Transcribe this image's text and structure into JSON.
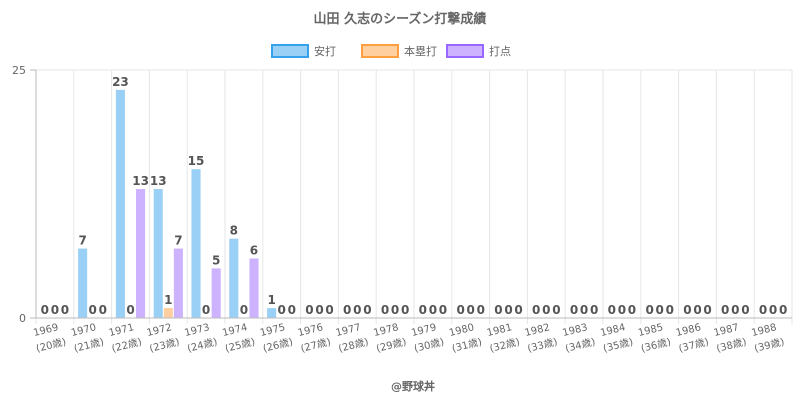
{
  "chart_data": {
    "type": "bar",
    "title": "山田 久志のシーズン打撃成績",
    "categories": [
      "1969",
      "1970",
      "1971",
      "1972",
      "1973",
      "1974",
      "1975",
      "1976",
      "1977",
      "1978",
      "1979",
      "1980",
      "1981",
      "1982",
      "1983",
      "1984",
      "1985",
      "1986",
      "1987",
      "1988"
    ],
    "category_sublabels": [
      "(20歳)",
      "(21歳)",
      "(22歳)",
      "(23歳)",
      "(24歳)",
      "(25歳)",
      "(26歳)",
      "(27歳)",
      "(28歳)",
      "(29歳)",
      "(30歳)",
      "(31歳)",
      "(32歳)",
      "(33歳)",
      "(34歳)",
      "(35歳)",
      "(36歳)",
      "(37歳)",
      "(38歳)",
      "(39歳)"
    ],
    "series": [
      {
        "name": "安打",
        "color": "#9ad0f5",
        "border": "#36a2eb",
        "values": [
          0,
          7,
          23,
          13,
          15,
          8,
          1,
          0,
          0,
          0,
          0,
          0,
          0,
          0,
          0,
          0,
          0,
          0,
          0,
          0
        ]
      },
      {
        "name": "本塁打",
        "color": "#ffcf9f",
        "border": "#ff9f40",
        "values": [
          0,
          0,
          0,
          1,
          0,
          0,
          0,
          0,
          0,
          0,
          0,
          0,
          0,
          0,
          0,
          0,
          0,
          0,
          0,
          0
        ]
      },
      {
        "name": "打点",
        "color": "#ccb2ff",
        "border": "#9966ff",
        "values": [
          0,
          0,
          13,
          7,
          5,
          6,
          0,
          0,
          0,
          0,
          0,
          0,
          0,
          0,
          0,
          0,
          0,
          0,
          0,
          0
        ]
      }
    ],
    "y_ticks": [
      "0",
      "25"
    ],
    "ylim": [
      0,
      25
    ],
    "legend_position": "top",
    "grid": true,
    "footer": "@野球丼"
  }
}
